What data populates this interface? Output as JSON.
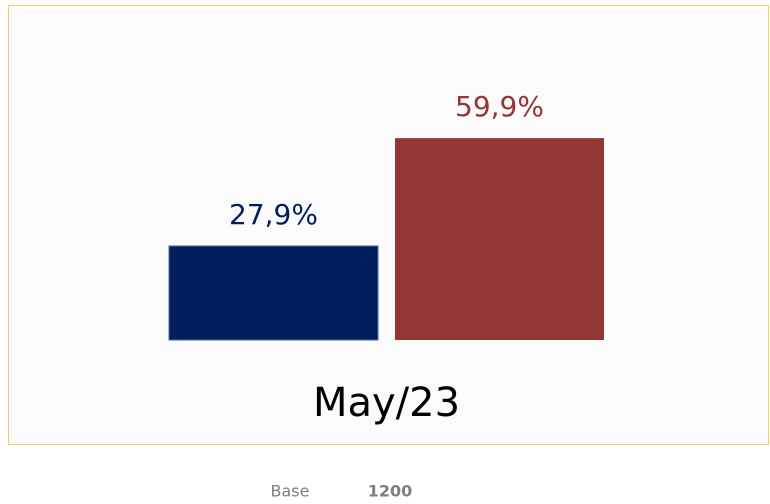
{
  "chart_data": {
    "type": "bar",
    "categories": [
      "May/23"
    ],
    "series": [
      {
        "color": "#001f5c",
        "values": [
          27.9
        ],
        "value_labels": [
          "27,9%"
        ]
      },
      {
        "color": "#943634",
        "values": [
          59.9
        ],
        "value_labels": [
          "59,9%"
        ]
      }
    ],
    "ylim": [
      0,
      100
    ],
    "footer": {
      "label": "Base",
      "value": 1200
    }
  }
}
